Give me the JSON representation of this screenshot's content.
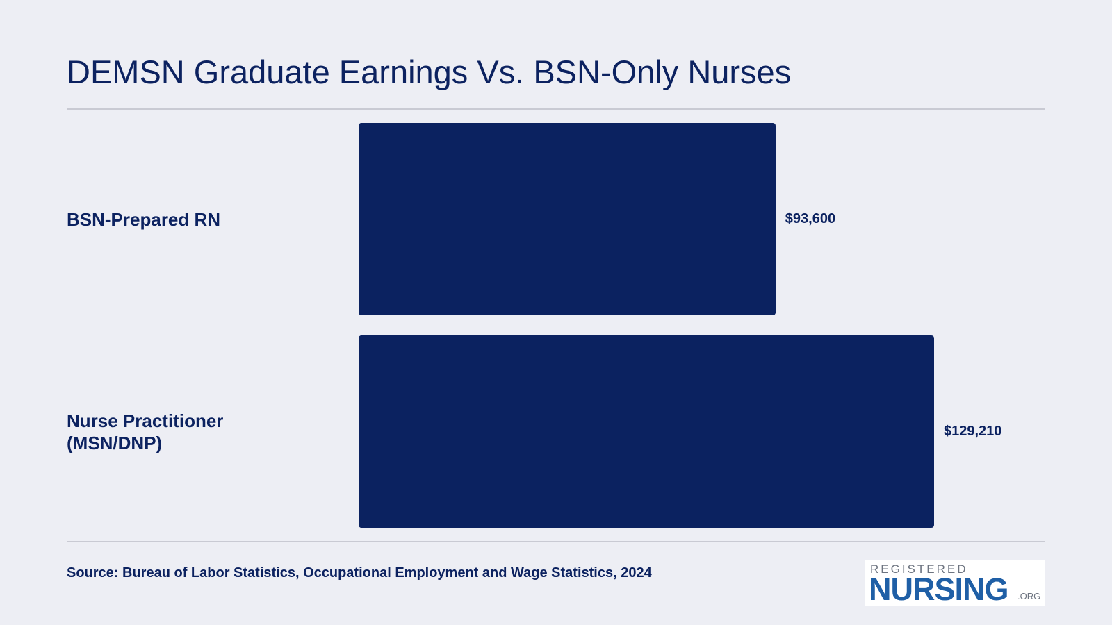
{
  "chart_data": {
    "type": "bar",
    "orientation": "horizontal",
    "title": "DEMSN Graduate Earnings Vs. BSN-Only Nurses",
    "categories": [
      "BSN-Prepared RN",
      "Nurse Practitioner (MSN/DNP)"
    ],
    "values": [
      93600,
      129210
    ],
    "value_labels": [
      "$93,600",
      "$129,210"
    ],
    "color": "#0b2260",
    "source": "Source: Bureau of Labor Statistics, Occupational Employment and Wage Statistics, 2024"
  },
  "logo": {
    "top": "REGISTERED",
    "main": "NURSING",
    "suffix": ".ORG"
  }
}
